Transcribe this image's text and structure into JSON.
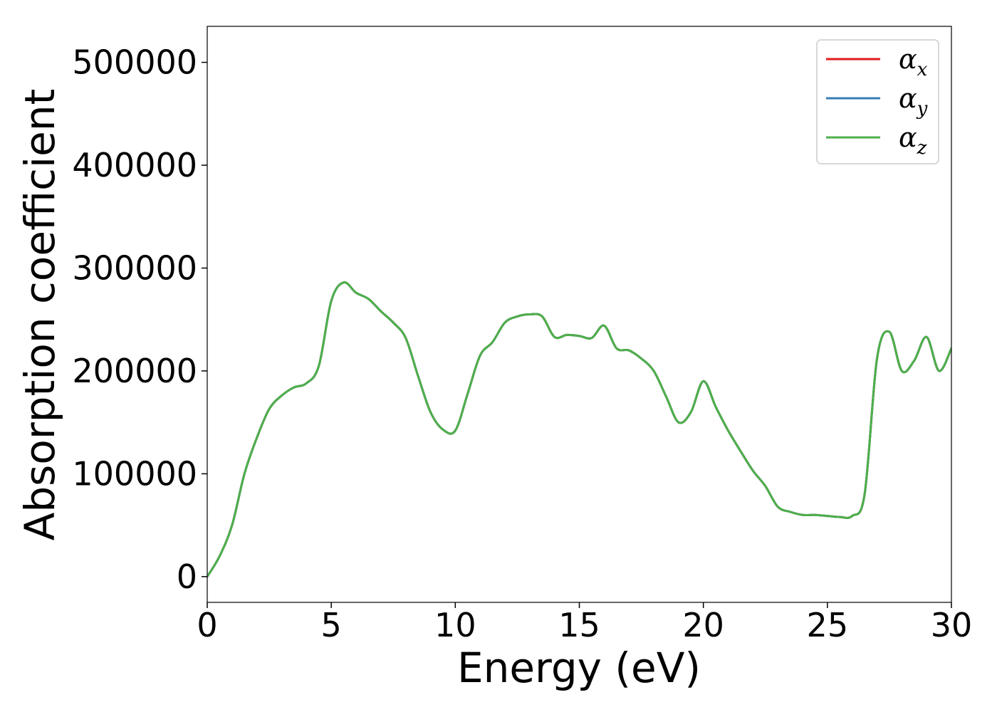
{
  "chart_data": {
    "type": "line",
    "title": "",
    "xlabel": "Energy (eV)",
    "ylabel": "Absorption coefficient",
    "xlim": [
      0,
      30
    ],
    "ylim": [
      -25000,
      535000
    ],
    "xticks": [
      0,
      5,
      10,
      15,
      20,
      25,
      30
    ],
    "xtick_labels": [
      "0",
      "5",
      "10",
      "15",
      "20",
      "25",
      "30"
    ],
    "yticks": [
      0,
      100000,
      200000,
      300000,
      400000,
      500000
    ],
    "ytick_labels": [
      "0",
      "100000",
      "200000",
      "300000",
      "400000",
      "500000"
    ],
    "grid": false,
    "legend_position": "top-right",
    "series": [
      {
        "name": "α",
        "subscript": "x",
        "color": "#e41a1c"
      },
      {
        "name": "α",
        "subscript": "y",
        "color": "#377eb8"
      },
      {
        "name": "α",
        "subscript": "z",
        "color": "#4daf4a"
      }
    ],
    "x": [
      0,
      0.5,
      1.0,
      1.5,
      2.0,
      2.5,
      3.0,
      3.5,
      4.0,
      4.5,
      5.0,
      5.5,
      6.0,
      6.5,
      7.0,
      7.5,
      8.0,
      8.5,
      9.0,
      9.5,
      10.0,
      10.5,
      11.0,
      11.5,
      12.0,
      12.5,
      13.0,
      13.5,
      14.0,
      14.5,
      15.0,
      15.5,
      16.0,
      16.5,
      17.0,
      17.5,
      18.0,
      18.5,
      19.0,
      19.5,
      20.0,
      20.5,
      21.0,
      21.5,
      22.0,
      22.5,
      23.0,
      23.5,
      24.0,
      24.5,
      25.0,
      25.5,
      26.0,
      26.5,
      27.0,
      27.5,
      28.0,
      28.5,
      29.0,
      29.5,
      30.0
    ],
    "values": [
      0,
      20000,
      50000,
      100000,
      135000,
      163000,
      176000,
      184000,
      188000,
      205000,
      268000,
      286000,
      276000,
      270000,
      258000,
      247000,
      232000,
      195000,
      160000,
      143000,
      142000,
      178000,
      215000,
      228000,
      247000,
      253000,
      255000,
      253000,
      233000,
      235000,
      234000,
      232000,
      244000,
      222000,
      220000,
      212000,
      200000,
      175000,
      150000,
      160000,
      190000,
      165000,
      142000,
      122000,
      103000,
      88000,
      68000,
      63000,
      60000,
      60000,
      59000,
      58000,
      59000,
      80000,
      212000,
      238000,
      200000,
      210000,
      233000,
      200000,
      222000
    ]
  }
}
